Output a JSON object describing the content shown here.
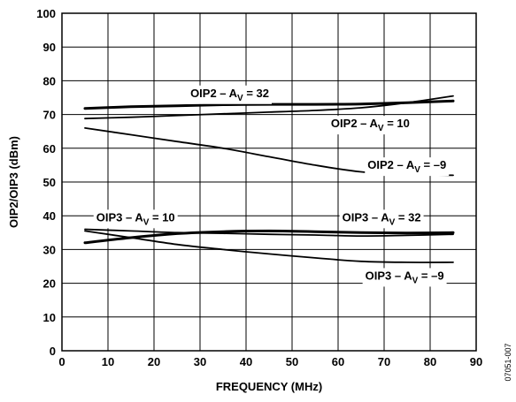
{
  "figure_id": "07051-007",
  "chart_data": {
    "type": "line",
    "title": "",
    "xlabel": "FREQUENCY (MHz)",
    "ylabel": "OIP2/OIP3 (dBm)",
    "xlim": [
      0,
      90
    ],
    "ylim": [
      0,
      100
    ],
    "x_ticks": [
      "0",
      "10",
      "20",
      "30",
      "40",
      "50",
      "60",
      "70",
      "80",
      "90"
    ],
    "y_ticks": [
      "0",
      "10",
      "20",
      "30",
      "40",
      "50",
      "60",
      "70",
      "80",
      "90",
      "100"
    ],
    "grid": true,
    "legend": "none",
    "series": [
      {
        "name": "OIP2 – AV = 32",
        "label_main": "OIP2 – A",
        "label_sub": "V",
        "label_tail": " = 32",
        "x": [
          5,
          15,
          25,
          35,
          45,
          55,
          65,
          75,
          85
        ],
        "y": [
          71.8,
          72.3,
          72.6,
          72.9,
          73.0,
          73.0,
          73.1,
          73.5,
          74.0
        ]
      },
      {
        "name": "OIP2 – AV = 10",
        "label_main": "OIP2 – A",
        "label_sub": "V",
        "label_tail": " = 10",
        "x": [
          5,
          15,
          25,
          35,
          45,
          55,
          65,
          75,
          85
        ],
        "y": [
          68.8,
          69.2,
          69.7,
          70.2,
          70.7,
          71.2,
          72.0,
          73.5,
          75.5
        ]
      },
      {
        "name": "OIP2 – AV = –9",
        "label_main": "OIP2 – A",
        "label_sub": "V",
        "label_tail": " = –9",
        "x": [
          5,
          15,
          25,
          35,
          45,
          55,
          65,
          75,
          85
        ],
        "y": [
          66.0,
          64.0,
          62.0,
          60.0,
          57.5,
          55.0,
          53.0,
          52.3,
          52.0
        ]
      },
      {
        "name": "OIP3 – AV = 10",
        "label_main": "OIP3 – A",
        "label_sub": "V",
        "label_tail": " = 10",
        "x": [
          5,
          15,
          25,
          35,
          45,
          55,
          65,
          75,
          85
        ],
        "y": [
          36.0,
          35.5,
          35.0,
          34.8,
          34.5,
          34.3,
          34.0,
          34.2,
          34.5
        ]
      },
      {
        "name": "OIP3 – AV = 32",
        "label_main": "OIP3 – A",
        "label_sub": "V",
        "label_tail": " = 32",
        "x": [
          5,
          15,
          25,
          35,
          45,
          55,
          65,
          75,
          85
        ],
        "y": [
          32.0,
          33.5,
          34.7,
          35.3,
          35.5,
          35.3,
          35.0,
          34.9,
          35.0
        ]
      },
      {
        "name": "OIP3 – AV = –9",
        "label_main": "OIP3 – A",
        "label_sub": "V",
        "label_tail": " = –9",
        "x": [
          5,
          15,
          25,
          35,
          45,
          55,
          65,
          75,
          85
        ],
        "y": [
          35.5,
          33.5,
          31.5,
          30.0,
          28.7,
          27.5,
          26.5,
          26.2,
          26.2
        ]
      }
    ]
  },
  "colors": {
    "line": "#000000",
    "grid": "#000000",
    "background": "#ffffff"
  }
}
